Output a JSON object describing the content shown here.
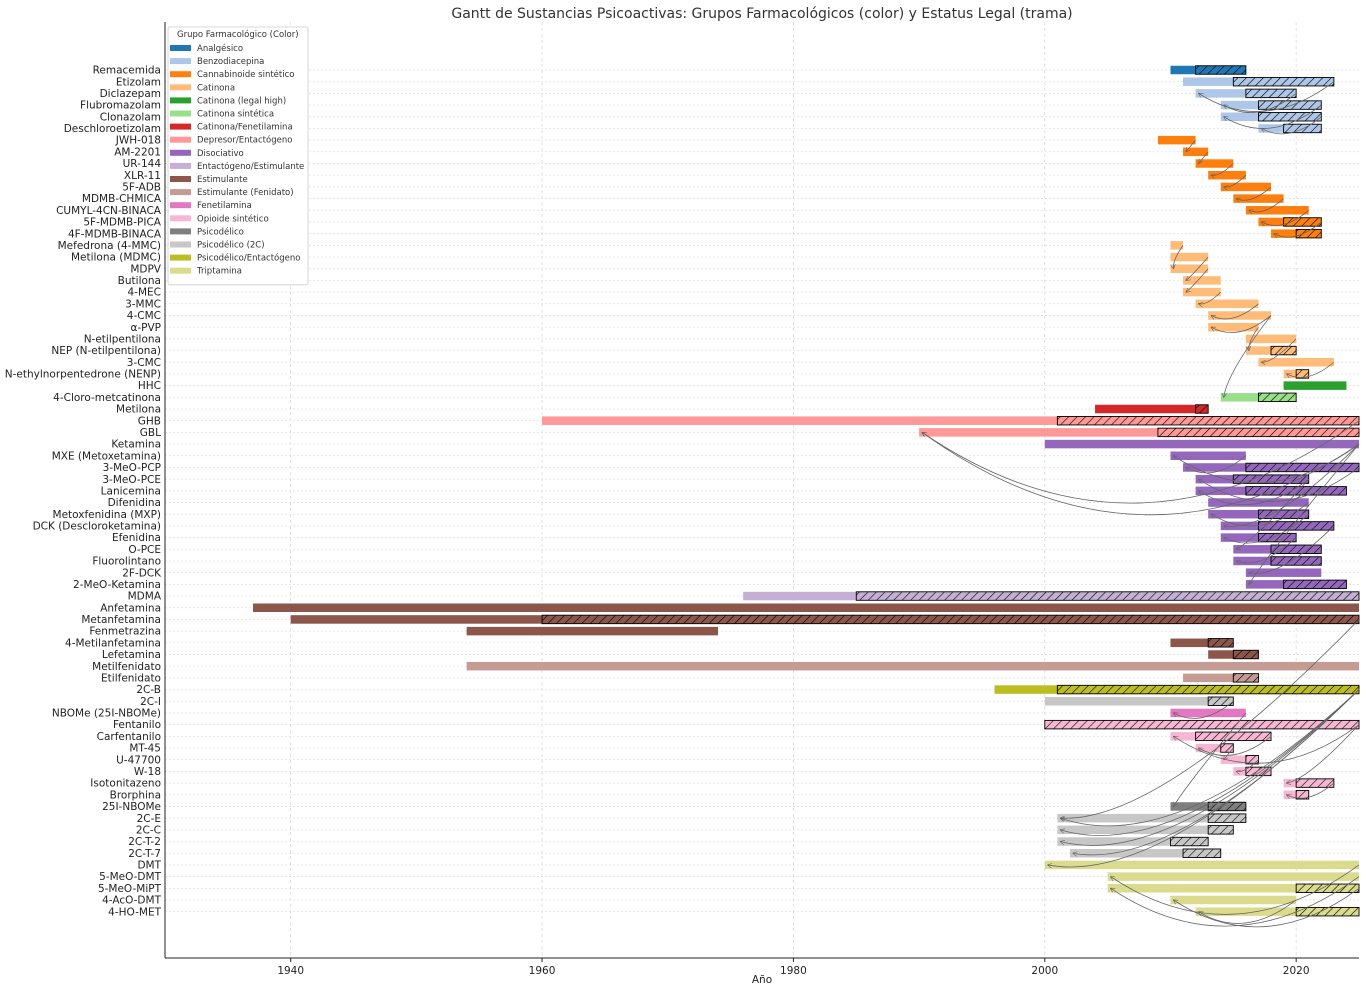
{
  "chart_data": {
    "type": "gantt",
    "title": "Gantt de Sustancias Psicoactivas: Grupos Farmacológicos (color) y Estatus Legal (trama)",
    "xlabel": "Año",
    "ylabel": "",
    "xlim": [
      1930,
      2025
    ],
    "xticks": [
      1940,
      1960,
      1980,
      2000,
      2020
    ],
    "grid": true,
    "legend": {
      "title": "Grupo Farmacológico (Color)",
      "position": "top-left",
      "entries": [
        {
          "name": "Analgésico",
          "color": "#1f77b4"
        },
        {
          "name": "Benzodiacepina",
          "color": "#aec7e8"
        },
        {
          "name": "Cannabinoide sintético",
          "color": "#ff7f0e"
        },
        {
          "name": "Catinona",
          "color": "#ffbb78"
        },
        {
          "name": "Catinona (legal high)",
          "color": "#2ca02c"
        },
        {
          "name": "Catinona sintética",
          "color": "#98df8a"
        },
        {
          "name": "Catinona/Fenetilamina",
          "color": "#d62728"
        },
        {
          "name": "Depresor/Entactógeno",
          "color": "#ff9896"
        },
        {
          "name": "Disociativo",
          "color": "#9467bd"
        },
        {
          "name": "Entactógeno/Estimulante",
          "color": "#c5b0d5"
        },
        {
          "name": "Estimulante",
          "color": "#8c564b"
        },
        {
          "name": "Estimulante (Fenidato)",
          "color": "#c49c94"
        },
        {
          "name": "Fenetilamina",
          "color": "#e377c2"
        },
        {
          "name": "Opioide sintético",
          "color": "#f7b6d2"
        },
        {
          "name": "Psicodélico",
          "color": "#7f7f7f"
        },
        {
          "name": "Psicodélico (2C)",
          "color": "#c7c7c7"
        },
        {
          "name": "Psicodélico/Entactógeno",
          "color": "#bcbd22"
        },
        {
          "name": "Triptamina",
          "color": "#dbdb8d"
        }
      ]
    },
    "rows": [
      {
        "name": "Remacemida",
        "group": "Analgésico",
        "start": 2010,
        "end": 2016,
        "legal_start": 2012,
        "legal_end": 2016
      },
      {
        "name": "Etizolam",
        "group": "Benzodiacepina",
        "start": 2011,
        "end": 2023,
        "legal_start": 2015,
        "legal_end": 2023
      },
      {
        "name": "Diclazepam",
        "group": "Benzodiacepina",
        "start": 2012,
        "end": 2020,
        "legal_start": 2016,
        "legal_end": 2020
      },
      {
        "name": "Flubromazolam",
        "group": "Benzodiacepina",
        "start": 2014,
        "end": 2022,
        "legal_start": 2017,
        "legal_end": 2022
      },
      {
        "name": "Clonazolam",
        "group": "Benzodiacepina",
        "start": 2014,
        "end": 2022,
        "legal_start": 2017,
        "legal_end": 2022
      },
      {
        "name": "Deschloroetizolam",
        "group": "Benzodiacepina",
        "start": 2017,
        "end": 2022,
        "legal_start": 2019,
        "legal_end": 2022
      },
      {
        "name": "JWH-018",
        "group": "Cannabinoide sintético",
        "start": 2009,
        "end": 2012
      },
      {
        "name": "AM-2201",
        "group": "Cannabinoide sintético",
        "start": 2011,
        "end": 2013
      },
      {
        "name": "UR-144",
        "group": "Cannabinoide sintético",
        "start": 2012,
        "end": 2015
      },
      {
        "name": "XLR-11",
        "group": "Cannabinoide sintético",
        "start": 2013,
        "end": 2016
      },
      {
        "name": "5F-ADB",
        "group": "Cannabinoide sintético",
        "start": 2014,
        "end": 2018
      },
      {
        "name": "MDMB-CHMICA",
        "group": "Cannabinoide sintético",
        "start": 2015,
        "end": 2019
      },
      {
        "name": "CUMYL-4CN-BINACA",
        "group": "Cannabinoide sintético",
        "start": 2016,
        "end": 2021
      },
      {
        "name": "5F-MDMB-PICA",
        "group": "Cannabinoide sintético",
        "start": 2017,
        "end": 2022,
        "legal_start": 2019,
        "legal_end": 2022
      },
      {
        "name": "4F-MDMB-BINACA",
        "group": "Cannabinoide sintético",
        "start": 2018,
        "end": 2022,
        "legal_start": 2020,
        "legal_end": 2022
      },
      {
        "name": "Mefedrona (4-MMC)",
        "group": "Catinona",
        "start": 2010,
        "end": 2011
      },
      {
        "name": "Metilona (MDMC)",
        "group": "Catinona",
        "start": 2010,
        "end": 2013
      },
      {
        "name": "MDPV",
        "group": "Catinona",
        "start": 2010,
        "end": 2013
      },
      {
        "name": "Butilona",
        "group": "Catinona",
        "start": 2011,
        "end": 2014
      },
      {
        "name": "4-MEC",
        "group": "Catinona",
        "start": 2011,
        "end": 2014
      },
      {
        "name": "3-MMC",
        "group": "Catinona",
        "start": 2012,
        "end": 2017
      },
      {
        "name": "4-CMC",
        "group": "Catinona",
        "start": 2013,
        "end": 2018
      },
      {
        "name": "α-PVP",
        "group": "Catinona",
        "start": 2013,
        "end": 2017
      },
      {
        "name": "N-etilpentilona",
        "group": "Catinona",
        "start": 2016,
        "end": 2020
      },
      {
        "name": "NEP (N-etilpentilona)",
        "group": "Catinona",
        "start": 2016,
        "end": 2020,
        "legal_start": 2018,
        "legal_end": 2020
      },
      {
        "name": "3-CMC",
        "group": "Catinona",
        "start": 2017,
        "end": 2023
      },
      {
        "name": "N-ethylnorpentedrone (NENP)",
        "group": "Catinona",
        "start": 2019,
        "end": 2021,
        "legal_start": 2020,
        "legal_end": 2021
      },
      {
        "name": "HHC",
        "group": "Catinona (legal high)",
        "start": 2019,
        "end": 2024
      },
      {
        "name": "4-Cloro-metcatinona",
        "group": "Catinona sintética",
        "start": 2014,
        "end": 2020,
        "legal_start": 2017,
        "legal_end": 2020
      },
      {
        "name": "Metilona",
        "group": "Catinona/Fenetilamina",
        "start": 2004,
        "end": 2013,
        "legal_start": 2012,
        "legal_end": 2013
      },
      {
        "name": "GHB",
        "group": "Depresor/Entactógeno",
        "start": 1960,
        "end": 2025,
        "legal_start": 2001,
        "legal_end": 2025
      },
      {
        "name": "GBL",
        "group": "Depresor/Entactógeno",
        "start": 1990,
        "end": 2025,
        "legal_start": 2009,
        "legal_end": 2025
      },
      {
        "name": "Ketamina",
        "group": "Disociativo",
        "start": 2000,
        "end": 2025
      },
      {
        "name": "MXE (Metoxetamina)",
        "group": "Disociativo",
        "start": 2010,
        "end": 2016
      },
      {
        "name": "3-MeO-PCP",
        "group": "Disociativo",
        "start": 2011,
        "end": 2025,
        "legal_start": 2016,
        "legal_end": 2025
      },
      {
        "name": "3-MeO-PCE",
        "group": "Disociativo",
        "start": 2012,
        "end": 2021,
        "legal_start": 2015,
        "legal_end": 2021
      },
      {
        "name": "Lanicemina",
        "group": "Disociativo",
        "start": 2012,
        "end": 2024,
        "legal_start": 2016,
        "legal_end": 2024
      },
      {
        "name": "Difenidina",
        "group": "Disociativo",
        "start": 2013,
        "end": 2021
      },
      {
        "name": "Metoxfenidina (MXP)",
        "group": "Disociativo",
        "start": 2013,
        "end": 2021,
        "legal_start": 2017,
        "legal_end": 2021
      },
      {
        "name": "DCK (Descloroketamina)",
        "group": "Disociativo",
        "start": 2014,
        "end": 2023,
        "legal_start": 2017,
        "legal_end": 2023
      },
      {
        "name": "Efenidina",
        "group": "Disociativo",
        "start": 2014,
        "end": 2020,
        "legal_start": 2017,
        "legal_end": 2020
      },
      {
        "name": "O-PCE",
        "group": "Disociativo",
        "start": 2015,
        "end": 2022,
        "legal_start": 2018,
        "legal_end": 2022
      },
      {
        "name": "Fluorolintano",
        "group": "Disociativo",
        "start": 2015,
        "end": 2022,
        "legal_start": 2018,
        "legal_end": 2022
      },
      {
        "name": "2F-DCK",
        "group": "Disociativo",
        "start": 2016,
        "end": 2022
      },
      {
        "name": "2-MeO-Ketamina",
        "group": "Disociativo",
        "start": 2016,
        "end": 2024,
        "legal_start": 2019,
        "legal_end": 2024
      },
      {
        "name": "MDMA",
        "group": "Entactógeno/Estimulante",
        "start": 1976,
        "end": 2025,
        "legal_start": 1985,
        "legal_end": 2025
      },
      {
        "name": "Anfetamina",
        "group": "Estimulante",
        "start": 1937,
        "end": 2025
      },
      {
        "name": "Metanfetamina",
        "group": "Estimulante",
        "start": 1940,
        "end": 2025,
        "legal_start": 1960,
        "legal_end": 2025
      },
      {
        "name": "Fenmetrazina",
        "group": "Estimulante",
        "start": 1954,
        "end": 1974
      },
      {
        "name": "4-Metilanfetamina",
        "group": "Estimulante",
        "start": 2010,
        "end": 2015,
        "legal_start": 2013,
        "legal_end": 2015
      },
      {
        "name": "Lefetamina",
        "group": "Estimulante",
        "start": 2013,
        "end": 2017,
        "legal_start": 2015,
        "legal_end": 2017
      },
      {
        "name": "Metilfenidato",
        "group": "Estimulante (Fenidato)",
        "start": 1954,
        "end": 2025
      },
      {
        "name": "Etilfenidato",
        "group": "Estimulante (Fenidato)",
        "start": 2011,
        "end": 2017,
        "legal_start": 2015,
        "legal_end": 2017
      },
      {
        "name": "2C-B",
        "group": "Psicodélico/Entactógeno",
        "start": 1996,
        "end": 2025,
        "legal_start": 2001,
        "legal_end": 2025
      },
      {
        "name": "2C-I",
        "group": "Psicodélico (2C)",
        "start": 2000,
        "end": 2015,
        "legal_start": 2013,
        "legal_end": 2015
      },
      {
        "name": "NBOMe (25I-NBOMe)",
        "group": "Fenetilamina",
        "start": 2010,
        "end": 2016
      },
      {
        "name": "Fentanilo",
        "group": "Opioide sintético",
        "start": 2000,
        "end": 2025,
        "legal_start": 2000,
        "legal_end": 2025
      },
      {
        "name": "Carfentanilo",
        "group": "Opioide sintético",
        "start": 2010,
        "end": 2018,
        "legal_start": 2012,
        "legal_end": 2018
      },
      {
        "name": "MT-45",
        "group": "Opioide sintético",
        "start": 2012,
        "end": 2015,
        "legal_start": 2014,
        "legal_end": 2015
      },
      {
        "name": "U-47700",
        "group": "Opioide sintético",
        "start": 2014,
        "end": 2017,
        "legal_start": 2016,
        "legal_end": 2017
      },
      {
        "name": "W-18",
        "group": "Opioide sintético",
        "start": 2015,
        "end": 2018,
        "legal_start": 2016,
        "legal_end": 2018
      },
      {
        "name": "Isotonitazeno",
        "group": "Opioide sintético",
        "start": 2019,
        "end": 2023,
        "legal_start": 2020,
        "legal_end": 2023
      },
      {
        "name": "Brorphina",
        "group": "Opioide sintético",
        "start": 2019,
        "end": 2021,
        "legal_start": 2020,
        "legal_end": 2021
      },
      {
        "name": "25I-NBOMe",
        "group": "Psicodélico",
        "start": 2010,
        "end": 2016,
        "legal_start": 2013,
        "legal_end": 2016
      },
      {
        "name": "2C-E",
        "group": "Psicodélico (2C)",
        "start": 2001,
        "end": 2016,
        "legal_start": 2013,
        "legal_end": 2016
      },
      {
        "name": "2C-C",
        "group": "Psicodélico (2C)",
        "start": 2001,
        "end": 2015,
        "legal_start": 2013,
        "legal_end": 2015
      },
      {
        "name": "2C-T-2",
        "group": "Psicodélico (2C)",
        "start": 2001,
        "end": 2013,
        "legal_start": 2010,
        "legal_end": 2013
      },
      {
        "name": "2C-T-7",
        "group": "Psicodélico (2C)",
        "start": 2002,
        "end": 2014,
        "legal_start": 2011,
        "legal_end": 2014
      },
      {
        "name": "DMT",
        "group": "Triptamina",
        "start": 2000,
        "end": 2025
      },
      {
        "name": "5-MeO-DMT",
        "group": "Triptamina",
        "start": 2005,
        "end": 2025
      },
      {
        "name": "5-MeO-MiPT",
        "group": "Triptamina",
        "start": 2005,
        "end": 2025,
        "legal_start": 2020,
        "legal_end": 2025
      },
      {
        "name": "4-AcO-DMT",
        "group": "Triptamina",
        "start": 2010,
        "end": 2020
      },
      {
        "name": "4-HO-MET",
        "group": "Triptamina",
        "start": 2012,
        "end": 2025,
        "legal_start": 2020,
        "legal_end": 2025
      }
    ],
    "links": [
      {
        "from": "Etizolam",
        "to": "Diclazepam"
      },
      {
        "from": "Diclazepam",
        "to": "Flubromazolam"
      },
      {
        "from": "Flubromazolam",
        "to": "Clonazolam"
      },
      {
        "from": "Clonazolam",
        "to": "Deschloroetizolam"
      },
      {
        "from": "JWH-018",
        "to": "AM-2201"
      },
      {
        "from": "AM-2201",
        "to": "UR-144"
      },
      {
        "from": "UR-144",
        "to": "XLR-11"
      },
      {
        "from": "XLR-11",
        "to": "5F-ADB"
      },
      {
        "from": "5F-ADB",
        "to": "MDMB-CHMICA"
      },
      {
        "from": "MDMB-CHMICA",
        "to": "CUMYL-4CN-BINACA"
      },
      {
        "from": "CUMYL-4CN-BINACA",
        "to": "5F-MDMB-PICA"
      },
      {
        "from": "5F-MDMB-PICA",
        "to": "4F-MDMB-BINACA"
      },
      {
        "from": "Mefedrona (4-MMC)",
        "to": "MDPV"
      },
      {
        "from": "Metilona (MDMC)",
        "to": "Butilona"
      },
      {
        "from": "MDPV",
        "to": "4-MEC"
      },
      {
        "from": "4-MEC",
        "to": "3-MMC"
      },
      {
        "from": "3-MMC",
        "to": "4-CMC"
      },
      {
        "from": "4-CMC",
        "to": "α-PVP"
      },
      {
        "from": "α-PVP",
        "to": "NEP (N-etilpentilona)"
      },
      {
        "from": "N-etilpentilona",
        "to": "3-CMC"
      },
      {
        "from": "3-CMC",
        "to": "N-ethylnorpentedrone (NENP)"
      },
      {
        "from": "4-CMC",
        "to": "4-Cloro-metcatinona"
      },
      {
        "from": "GHB",
        "to": "GBL"
      },
      {
        "from": "Ketamina",
        "to": "MXE (Metoxetamina)"
      },
      {
        "from": "MXE (Metoxetamina)",
        "to": "3-MeO-PCP"
      },
      {
        "from": "3-MeO-PCP",
        "to": "3-MeO-PCE"
      },
      {
        "from": "3-MeO-PCE",
        "to": "Lanicemina"
      },
      {
        "from": "Difenidina",
        "to": "Metoxfenidina (MXP)"
      },
      {
        "from": "Ketamina",
        "to": "DCK (Descloroketamina)"
      },
      {
        "from": "Metoxfenidina (MXP)",
        "to": "Efenidina"
      },
      {
        "from": "3-MeO-PCE",
        "to": "O-PCE"
      },
      {
        "from": "Efenidina",
        "to": "Fluorolintano"
      },
      {
        "from": "DCK (Descloroketamina)",
        "to": "2F-DCK"
      },
      {
        "from": "Ketamina",
        "to": "2-MeO-Ketamina"
      },
      {
        "from": "2C-I",
        "to": "NBOMe (25I-NBOMe)"
      },
      {
        "from": "Fentanilo",
        "to": "Carfentanilo"
      },
      {
        "from": "Carfentanilo",
        "to": "MT-45"
      },
      {
        "from": "MT-45",
        "to": "U-47700"
      },
      {
        "from": "U-47700",
        "to": "W-18"
      },
      {
        "from": "Fentanilo",
        "to": "Isotonitazeno"
      },
      {
        "from": "Isotonitazeno",
        "to": "Brorphina"
      },
      {
        "from": "NBOMe (25I-NBOMe)",
        "to": "25I-NBOMe"
      },
      {
        "from": "2C-B",
        "to": "2C-E"
      },
      {
        "from": "2C-B",
        "to": "2C-C"
      },
      {
        "from": "2C-B",
        "to": "2C-T-2"
      },
      {
        "from": "2C-B",
        "to": "2C-T-7"
      },
      {
        "from": "2C-B",
        "to": "DMT"
      },
      {
        "from": "Metanfetamina",
        "to": "2C-E"
      },
      {
        "from": "Ketamina",
        "to": "GBL"
      },
      {
        "from": "DMT",
        "to": "5-MeO-DMT"
      },
      {
        "from": "5-MeO-DMT",
        "to": "5-MeO-MiPT"
      },
      {
        "from": "5-MeO-MiPT",
        "to": "4-AcO-DMT"
      },
      {
        "from": "4-AcO-DMT",
        "to": "4-HO-MET"
      }
    ]
  }
}
